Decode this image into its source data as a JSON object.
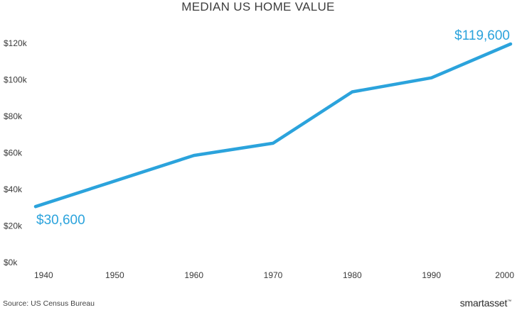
{
  "chart_data": {
    "type": "line",
    "title": "MEDIAN US HOME VALUE",
    "xlabel": "",
    "ylabel": "",
    "x": [
      1940,
      1950,
      1960,
      1970,
      1980,
      1990,
      2000
    ],
    "series": [
      {
        "values": [
          30600,
          44600,
          58600,
          65300,
          93400,
          101100,
          119600
        ]
      }
    ],
    "x_tick_labels": [
      "1940",
      "1950",
      "1960",
      "1970",
      "1980",
      "1990",
      "2000"
    ],
    "y_ticks": [
      0,
      20000,
      40000,
      60000,
      80000,
      100000,
      120000
    ],
    "y_tick_labels": [
      "$0k",
      "$20k",
      "$40k",
      "$60k",
      "$80k",
      "$100k",
      "$120k"
    ],
    "ylim": [
      0,
      120000
    ],
    "xlim": [
      1940,
      2000
    ],
    "grid": false,
    "legend": "none",
    "annotations": [
      {
        "text": "$30,600",
        "x": 1940,
        "y": 30600
      },
      {
        "text": "$119,600",
        "x": 2000,
        "y": 119600
      }
    ],
    "line_color": "#2ba3dc",
    "label_color": "#2ba3dc"
  },
  "footer": {
    "source": "Source: US Census Bureau",
    "brand": "smartasset",
    "brand_mark": "™"
  }
}
